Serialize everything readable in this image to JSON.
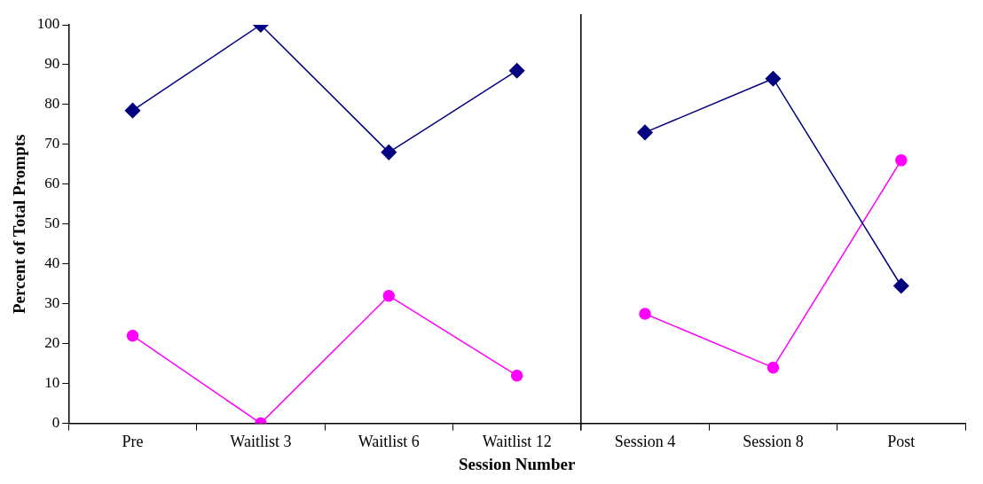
{
  "chart_data": {
    "type": "line",
    "xlabel": "Session Number",
    "ylabel": "Percent of Total Prompts",
    "categories": [
      "Pre",
      "Waitlist 3",
      "Waitlist 6",
      "Waitlist 12",
      "Session 4",
      "Session 8",
      "Post"
    ],
    "series": [
      {
        "color": "#000080",
        "marker": "diamond",
        "values": [
          78.5,
          100,
          68,
          88.5,
          null,
          null,
          null
        ]
      },
      {
        "color": "#000080",
        "marker": "diamond",
        "values": [
          null,
          null,
          null,
          null,
          73,
          86.5,
          34.5
        ]
      },
      {
        "color": "#ff00ff",
        "marker": "circle",
        "values": [
          22,
          0,
          32,
          12,
          null,
          null,
          null
        ]
      },
      {
        "color": "#ff00ff",
        "marker": "circle",
        "values": [
          null,
          null,
          null,
          null,
          27.5,
          14,
          66
        ]
      }
    ],
    "ylim": [
      0,
      100
    ],
    "yticks": [
      0,
      10,
      20,
      30,
      40,
      50,
      60,
      70,
      80,
      90,
      100
    ],
    "grid": false,
    "legend": false
  }
}
